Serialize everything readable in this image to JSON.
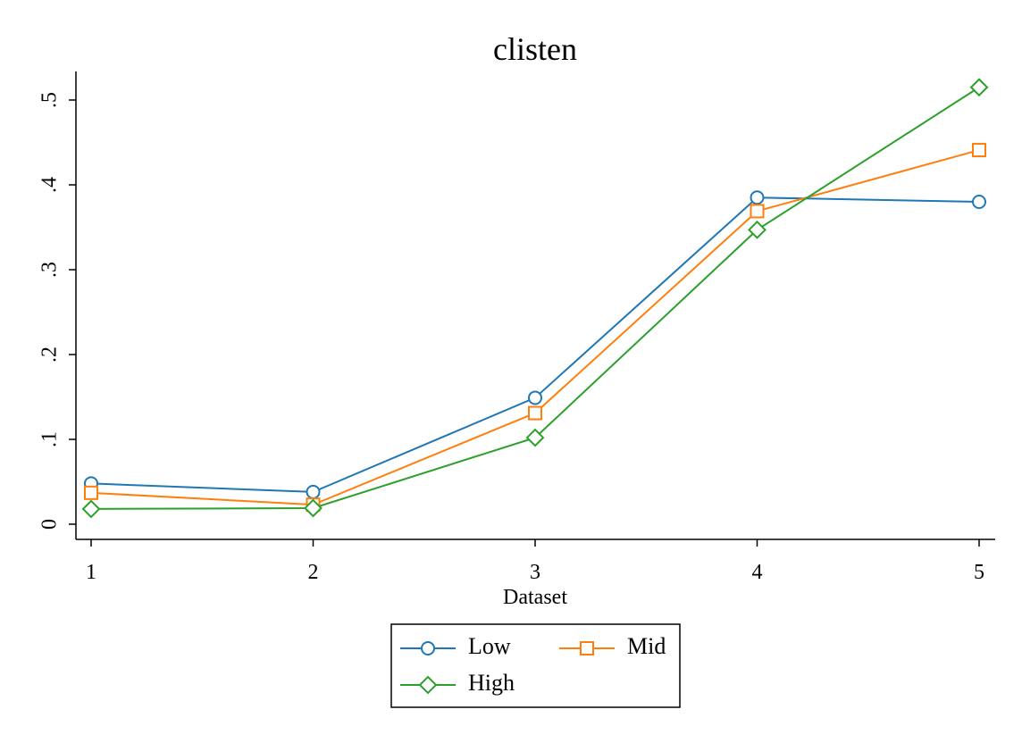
{
  "chart_data": {
    "type": "line",
    "title": "clisten",
    "xlabel": "Dataset",
    "ylabel": "",
    "x": [
      1,
      2,
      3,
      4,
      5
    ],
    "xticks": [
      "1",
      "2",
      "3",
      "4",
      "5"
    ],
    "yticks": [
      {
        "value": 0,
        "label": "0"
      },
      {
        "value": 0.1,
        "label": ".1"
      },
      {
        "value": 0.2,
        "label": ".2"
      },
      {
        "value": 0.3,
        "label": ".3"
      },
      {
        "value": 0.4,
        "label": ".4"
      },
      {
        "value": 0.5,
        "label": ".5"
      }
    ],
    "xlim": [
      1,
      5
    ],
    "ylim": [
      0,
      0.5
    ],
    "grid": false,
    "legend_position": "bottom",
    "series": [
      {
        "name": "Low",
        "color": "#1f77b4",
        "marker": "circle",
        "values": [
          0.048,
          0.038,
          0.149,
          0.385,
          0.38
        ]
      },
      {
        "name": "Mid",
        "color": "#ff7f0e",
        "marker": "square",
        "values": [
          0.037,
          0.023,
          0.131,
          0.369,
          0.441
        ]
      },
      {
        "name": "High",
        "color": "#2ca02c",
        "marker": "diamond",
        "values": [
          0.018,
          0.019,
          0.102,
          0.347,
          0.515
        ]
      }
    ]
  }
}
